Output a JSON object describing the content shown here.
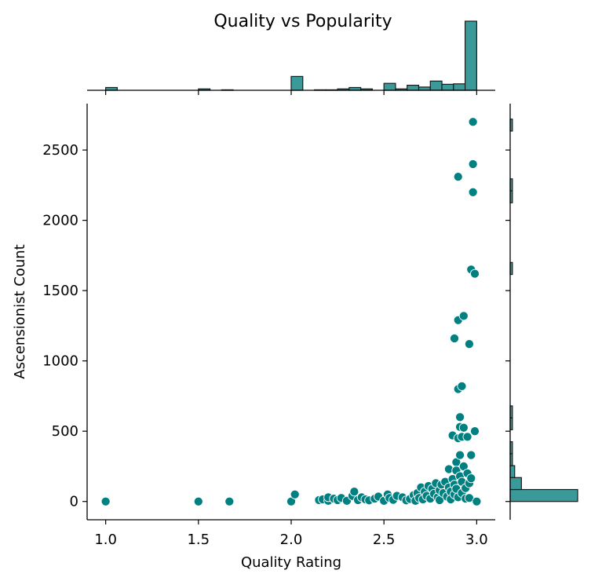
{
  "chart_data": {
    "type": "scatter",
    "title": "Quality vs Popularity",
    "xlabel": "Quality Rating",
    "ylabel": "Ascensionist Count",
    "xlim": [
      0.9,
      3.1
    ],
    "ylim": [
      -130,
      2830
    ],
    "xticks": [
      "1.0",
      "1.5",
      "2.0",
      "2.5",
      "3.0"
    ],
    "yticks": [
      "0",
      "500",
      "1000",
      "1500",
      "2000",
      "2500"
    ],
    "grid": false,
    "marginals": "histograms",
    "colors": {
      "point": "#008080",
      "hist_fill": "#3a9a9a",
      "hist_edge": "#1a1a1a"
    },
    "x_hist_bins": {
      "start": 1.0,
      "width": 0.0625,
      "counts": [
        6,
        0,
        0,
        0,
        0,
        0,
        0,
        0,
        3,
        0,
        1,
        0,
        0,
        0,
        0,
        0,
        30,
        0,
        1,
        1,
        3,
        6,
        3,
        0,
        15,
        3,
        11,
        7,
        20,
        13,
        14,
        150
      ]
    },
    "y_hist_bins": {
      "width": 85,
      "counts": [
        30,
        5,
        2,
        1,
        1,
        0,
        1,
        1,
        0,
        0,
        0,
        0,
        0,
        0,
        0,
        0,
        0,
        0,
        0,
        1,
        0,
        0,
        0,
        0,
        0,
        1,
        1,
        0,
        0,
        0,
        0,
        1
      ]
    },
    "points": [
      [
        1.0,
        0
      ],
      [
        1.5,
        0
      ],
      [
        1.667,
        0
      ],
      [
        2.0,
        0
      ],
      [
        2.02,
        50
      ],
      [
        2.15,
        10
      ],
      [
        2.17,
        15
      ],
      [
        2.2,
        5
      ],
      [
        2.2,
        30
      ],
      [
        2.23,
        20
      ],
      [
        2.25,
        10
      ],
      [
        2.27,
        25
      ],
      [
        2.3,
        5
      ],
      [
        2.33,
        40
      ],
      [
        2.34,
        70
      ],
      [
        2.36,
        10
      ],
      [
        2.38,
        30
      ],
      [
        2.4,
        15
      ],
      [
        2.42,
        8
      ],
      [
        2.45,
        20
      ],
      [
        2.47,
        35
      ],
      [
        2.5,
        5
      ],
      [
        2.52,
        50
      ],
      [
        2.53,
        25
      ],
      [
        2.55,
        12
      ],
      [
        2.57,
        40
      ],
      [
        2.6,
        30
      ],
      [
        2.62,
        8
      ],
      [
        2.64,
        18
      ],
      [
        2.66,
        45
      ],
      [
        2.67,
        5
      ],
      [
        2.68,
        60
      ],
      [
        2.69,
        25
      ],
      [
        2.7,
        100
      ],
      [
        2.71,
        15
      ],
      [
        2.72,
        70
      ],
      [
        2.73,
        40
      ],
      [
        2.74,
        110
      ],
      [
        2.75,
        20
      ],
      [
        2.76,
        90
      ],
      [
        2.77,
        55
      ],
      [
        2.78,
        130
      ],
      [
        2.79,
        30
      ],
      [
        2.8,
        80
      ],
      [
        2.8,
        10
      ],
      [
        2.81,
        120
      ],
      [
        2.82,
        60
      ],
      [
        2.83,
        140
      ],
      [
        2.84,
        35
      ],
      [
        2.85,
        100
      ],
      [
        2.85,
        230
      ],
      [
        2.86,
        70
      ],
      [
        2.86,
        15
      ],
      [
        2.87,
        160
      ],
      [
        2.87,
        470
      ],
      [
        2.88,
        50
      ],
      [
        2.88,
        120
      ],
      [
        2.88,
        1160
      ],
      [
        2.89,
        280
      ],
      [
        2.89,
        220
      ],
      [
        2.89,
        90
      ],
      [
        2.9,
        2310
      ],
      [
        2.9,
        1290
      ],
      [
        2.9,
        800
      ],
      [
        2.9,
        450
      ],
      [
        2.9,
        30
      ],
      [
        2.91,
        530
      ],
      [
        2.91,
        330
      ],
      [
        2.91,
        180
      ],
      [
        2.91,
        600
      ],
      [
        2.92,
        820
      ],
      [
        2.92,
        460
      ],
      [
        2.92,
        140
      ],
      [
        2.92,
        60
      ],
      [
        2.93,
        1320
      ],
      [
        2.93,
        250
      ],
      [
        2.93,
        525
      ],
      [
        2.94,
        95
      ],
      [
        2.94,
        20
      ],
      [
        2.95,
        460
      ],
      [
        2.95,
        200
      ],
      [
        2.96,
        1120
      ],
      [
        2.96,
        130
      ],
      [
        2.96,
        25
      ],
      [
        2.97,
        330
      ],
      [
        2.97,
        165
      ],
      [
        2.97,
        1650
      ],
      [
        2.98,
        2700
      ],
      [
        2.98,
        2400
      ],
      [
        2.98,
        2200
      ],
      [
        2.99,
        1620
      ],
      [
        2.99,
        500
      ],
      [
        3.0,
        0
      ]
    ]
  }
}
